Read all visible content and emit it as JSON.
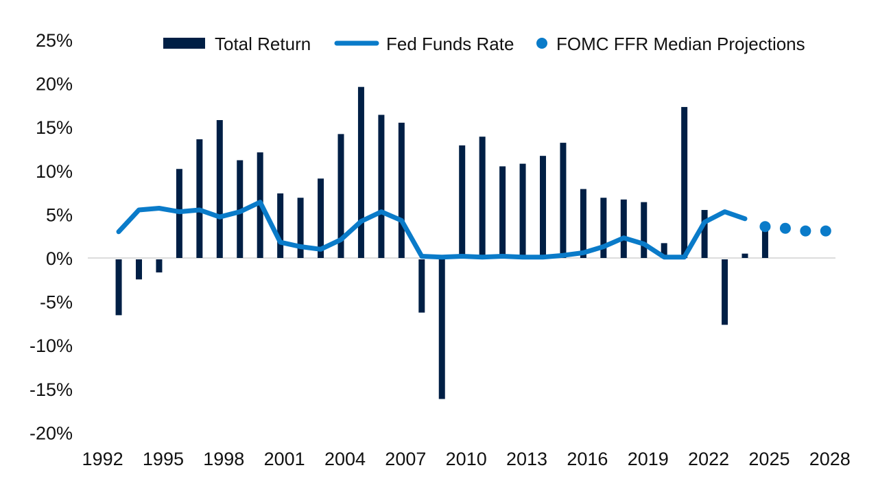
{
  "chart_data": {
    "type": "bar",
    "title": "",
    "xlabel": "",
    "ylabel": "",
    "ylim": [
      -20,
      25
    ],
    "y_ticks": [
      25,
      20,
      15,
      10,
      5,
      0,
      -5,
      -10,
      -15,
      -20
    ],
    "y_tick_labels": [
      "25%",
      "20%",
      "15%",
      "10%",
      "5%",
      "0%",
      "-5%",
      "-10%",
      "-15%",
      "-20%"
    ],
    "xlim": [
      1992,
      2028
    ],
    "x_ticks": [
      1992,
      1995,
      1998,
      2001,
      2004,
      2007,
      2010,
      2013,
      2016,
      2019,
      2022,
      2025,
      2028
    ],
    "x_tick_labels": [
      "1992",
      "1995",
      "1998",
      "2001",
      "2004",
      "2007",
      "2010",
      "2013",
      "2016",
      "2019",
      "2022",
      "2025",
      "2028"
    ],
    "grid": false,
    "legend_position": "top",
    "colors": {
      "total_return": "#001f45",
      "fed_funds_rate": "#0a7bc9",
      "projections": "#0a7bc9",
      "zero_line": "#dcdcdc"
    },
    "series": [
      {
        "name": "Total Return",
        "type": "bar",
        "x": [
          1993,
          1994,
          1995,
          1996,
          1997,
          1998,
          1999,
          2000,
          2001,
          2002,
          2003,
          2004,
          2005,
          2006,
          2007,
          2008,
          2009,
          2010,
          2011,
          2012,
          2013,
          2014,
          2015,
          2016,
          2017,
          2018,
          2019,
          2020,
          2021,
          2022,
          2023,
          2024,
          2025
        ],
        "values": [
          -6.4,
          -2.3,
          -1.5,
          10.2,
          13.6,
          15.8,
          11.2,
          12.1,
          7.4,
          6.9,
          9.1,
          14.2,
          19.6,
          16.4,
          15.5,
          -6.1,
          -16.0,
          12.9,
          13.9,
          10.5,
          10.8,
          11.7,
          13.2,
          7.9,
          6.9,
          6.7,
          6.4,
          1.7,
          17.3,
          5.5,
          -7.5,
          0.5,
          4.0
        ]
      },
      {
        "name": "Fed Funds Rate",
        "type": "line",
        "x": [
          1993,
          1994,
          1995,
          1996,
          1997,
          1998,
          1999,
          2000,
          2001,
          2002,
          2003,
          2004,
          2005,
          2006,
          2007,
          2008,
          2009,
          2010,
          2011,
          2012,
          2013,
          2014,
          2015,
          2016,
          2017,
          2018,
          2019,
          2020,
          2021,
          2022,
          2023,
          2024
        ],
        "values": [
          3.0,
          5.5,
          5.7,
          5.3,
          5.5,
          4.7,
          5.3,
          6.4,
          1.8,
          1.3,
          1.0,
          2.1,
          4.2,
          5.3,
          4.3,
          0.2,
          0.1,
          0.2,
          0.1,
          0.2,
          0.1,
          0.1,
          0.3,
          0.6,
          1.3,
          2.3,
          1.6,
          0.1,
          0.1,
          4.1,
          5.3,
          4.5
        ]
      },
      {
        "name": "FOMC FFR Median Projections",
        "type": "scatter",
        "x": [
          2025,
          2026,
          2027,
          2028
        ],
        "values": [
          3.6,
          3.4,
          3.1,
          3.1
        ]
      }
    ]
  },
  "legend": {
    "items": [
      {
        "label": "Total Return",
        "marker": "bar-swatch"
      },
      {
        "label": "Fed Funds Rate",
        "marker": "line-swatch"
      },
      {
        "label": "FOMC FFR Median Projections",
        "marker": "dot-swatch"
      }
    ]
  }
}
